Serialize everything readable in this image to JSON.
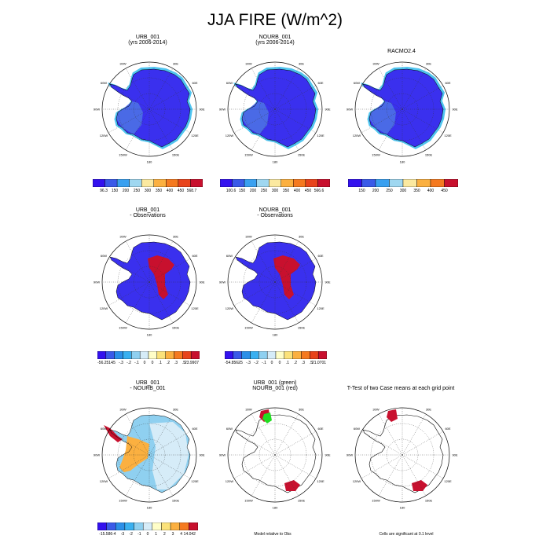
{
  "title": "JJA FIRE (W/m^2)",
  "lon_labels": [
    "30W",
    "30E",
    "60W",
    "60E",
    "90W",
    "90E",
    "120W",
    "120E",
    "150W",
    "150E",
    "180"
  ],
  "panels": [
    {
      "id": "p1",
      "title1": "URB_001",
      "title2": "(yrs 2006-2014)",
      "type": "model"
    },
    {
      "id": "p2",
      "title1": "NOURB_001",
      "title2": "(yrs 2006-2014)",
      "type": "model"
    },
    {
      "id": "p3",
      "title1": "RACMO2.4",
      "title2": "",
      "type": "model"
    },
    {
      "id": "p4",
      "title1": "URB_001",
      "title2": "- Observations",
      "type": "diff"
    },
    {
      "id": "p5",
      "title1": "NOURB_001",
      "title2": "- Observations",
      "type": "diff"
    },
    {
      "id": "p6",
      "title1": "URB_001",
      "title2": "- NOURB_001",
      "type": "diff2"
    },
    {
      "id": "p7",
      "title1": "URB_001 (green)",
      "title2": "NOURB_001 (red)",
      "type": "signif2"
    },
    {
      "id": "p8",
      "title1": "T-Test of two Case means at each grid point",
      "title2": "",
      "type": "signif"
    }
  ],
  "colorbars": [
    {
      "id": "cb1",
      "labels": [
        "96.3",
        "150",
        "200",
        "250",
        "300",
        "350",
        "400",
        "450",
        "568.7"
      ],
      "colors": [
        "#3311ee",
        "#3a5ae8",
        "#39a0f0",
        "#9fd7f0",
        "#fbe9a0",
        "#fbb040",
        "#f57a20",
        "#e8441c",
        "#c8102e"
      ]
    },
    {
      "id": "cb2",
      "labels": [
        "100.6",
        "150",
        "200",
        "250",
        "300",
        "350",
        "400",
        "450",
        "566.6"
      ],
      "colors": [
        "#3311ee",
        "#3a5ae8",
        "#39a0f0",
        "#9fd7f0",
        "#fbe9a0",
        "#fbb040",
        "#f57a20",
        "#e8441c",
        "#c8102e"
      ]
    },
    {
      "id": "cb3",
      "labels": [
        "150",
        "200",
        "250",
        "300",
        "350",
        "400",
        "450"
      ],
      "colors": [
        "#3311ee",
        "#3a5ae8",
        "#39a0f0",
        "#9fd7f0",
        "#fbe9a0",
        "#fbb040",
        "#f57a20",
        "#c8102e"
      ]
    },
    {
      "id": "cb4",
      "labels": [
        "-56.2514",
        "-.5",
        "-.3",
        "-.2",
        "-.1",
        "0",
        "0",
        ".1",
        ".2",
        ".3",
        ".5",
        "23.9907"
      ],
      "colors": [
        "#3311ee",
        "#3a5ae8",
        "#2b8fe8",
        "#39b0f0",
        "#8fd0f0",
        "#d6ecf8",
        "#fffec8",
        "#fbe27a",
        "#fbb040",
        "#f57a20",
        "#e8441c",
        "#c8102e"
      ]
    },
    {
      "id": "cb5",
      "labels": [
        "-54.8562",
        "-.5",
        "-.3",
        "-.2",
        "-.1",
        "0",
        "0",
        ".1",
        ".2",
        ".3",
        ".5",
        "21.0701"
      ],
      "colors": [
        "#3311ee",
        "#3a5ae8",
        "#2b8fe8",
        "#39b0f0",
        "#8fd0f0",
        "#d6ecf8",
        "#fffec8",
        "#fbe27a",
        "#fbb040",
        "#f57a20",
        "#e8441c",
        "#c8102e"
      ]
    },
    {
      "id": "cb6",
      "labels": [
        "-15.586",
        "-4",
        "-3",
        "-2",
        "-1",
        "0",
        "1",
        "2",
        "3",
        "4",
        "14.042"
      ],
      "colors": [
        "#3311ee",
        "#3a5ae8",
        "#2b8fe8",
        "#39b0f0",
        "#8fd0f0",
        "#d6ecf8",
        "#fffec8",
        "#fbe27a",
        "#fbb040",
        "#f57a20",
        "#c8102e"
      ]
    }
  ],
  "notes": {
    "model_relative": "Model relative to Obs",
    "significance": "Cells are significant at 0.1 level"
  },
  "chart_data": {
    "type": "heatmap",
    "title": "JJA FIRE (W/m^2)",
    "projection": "south polar stereographic",
    "grid": true
  }
}
